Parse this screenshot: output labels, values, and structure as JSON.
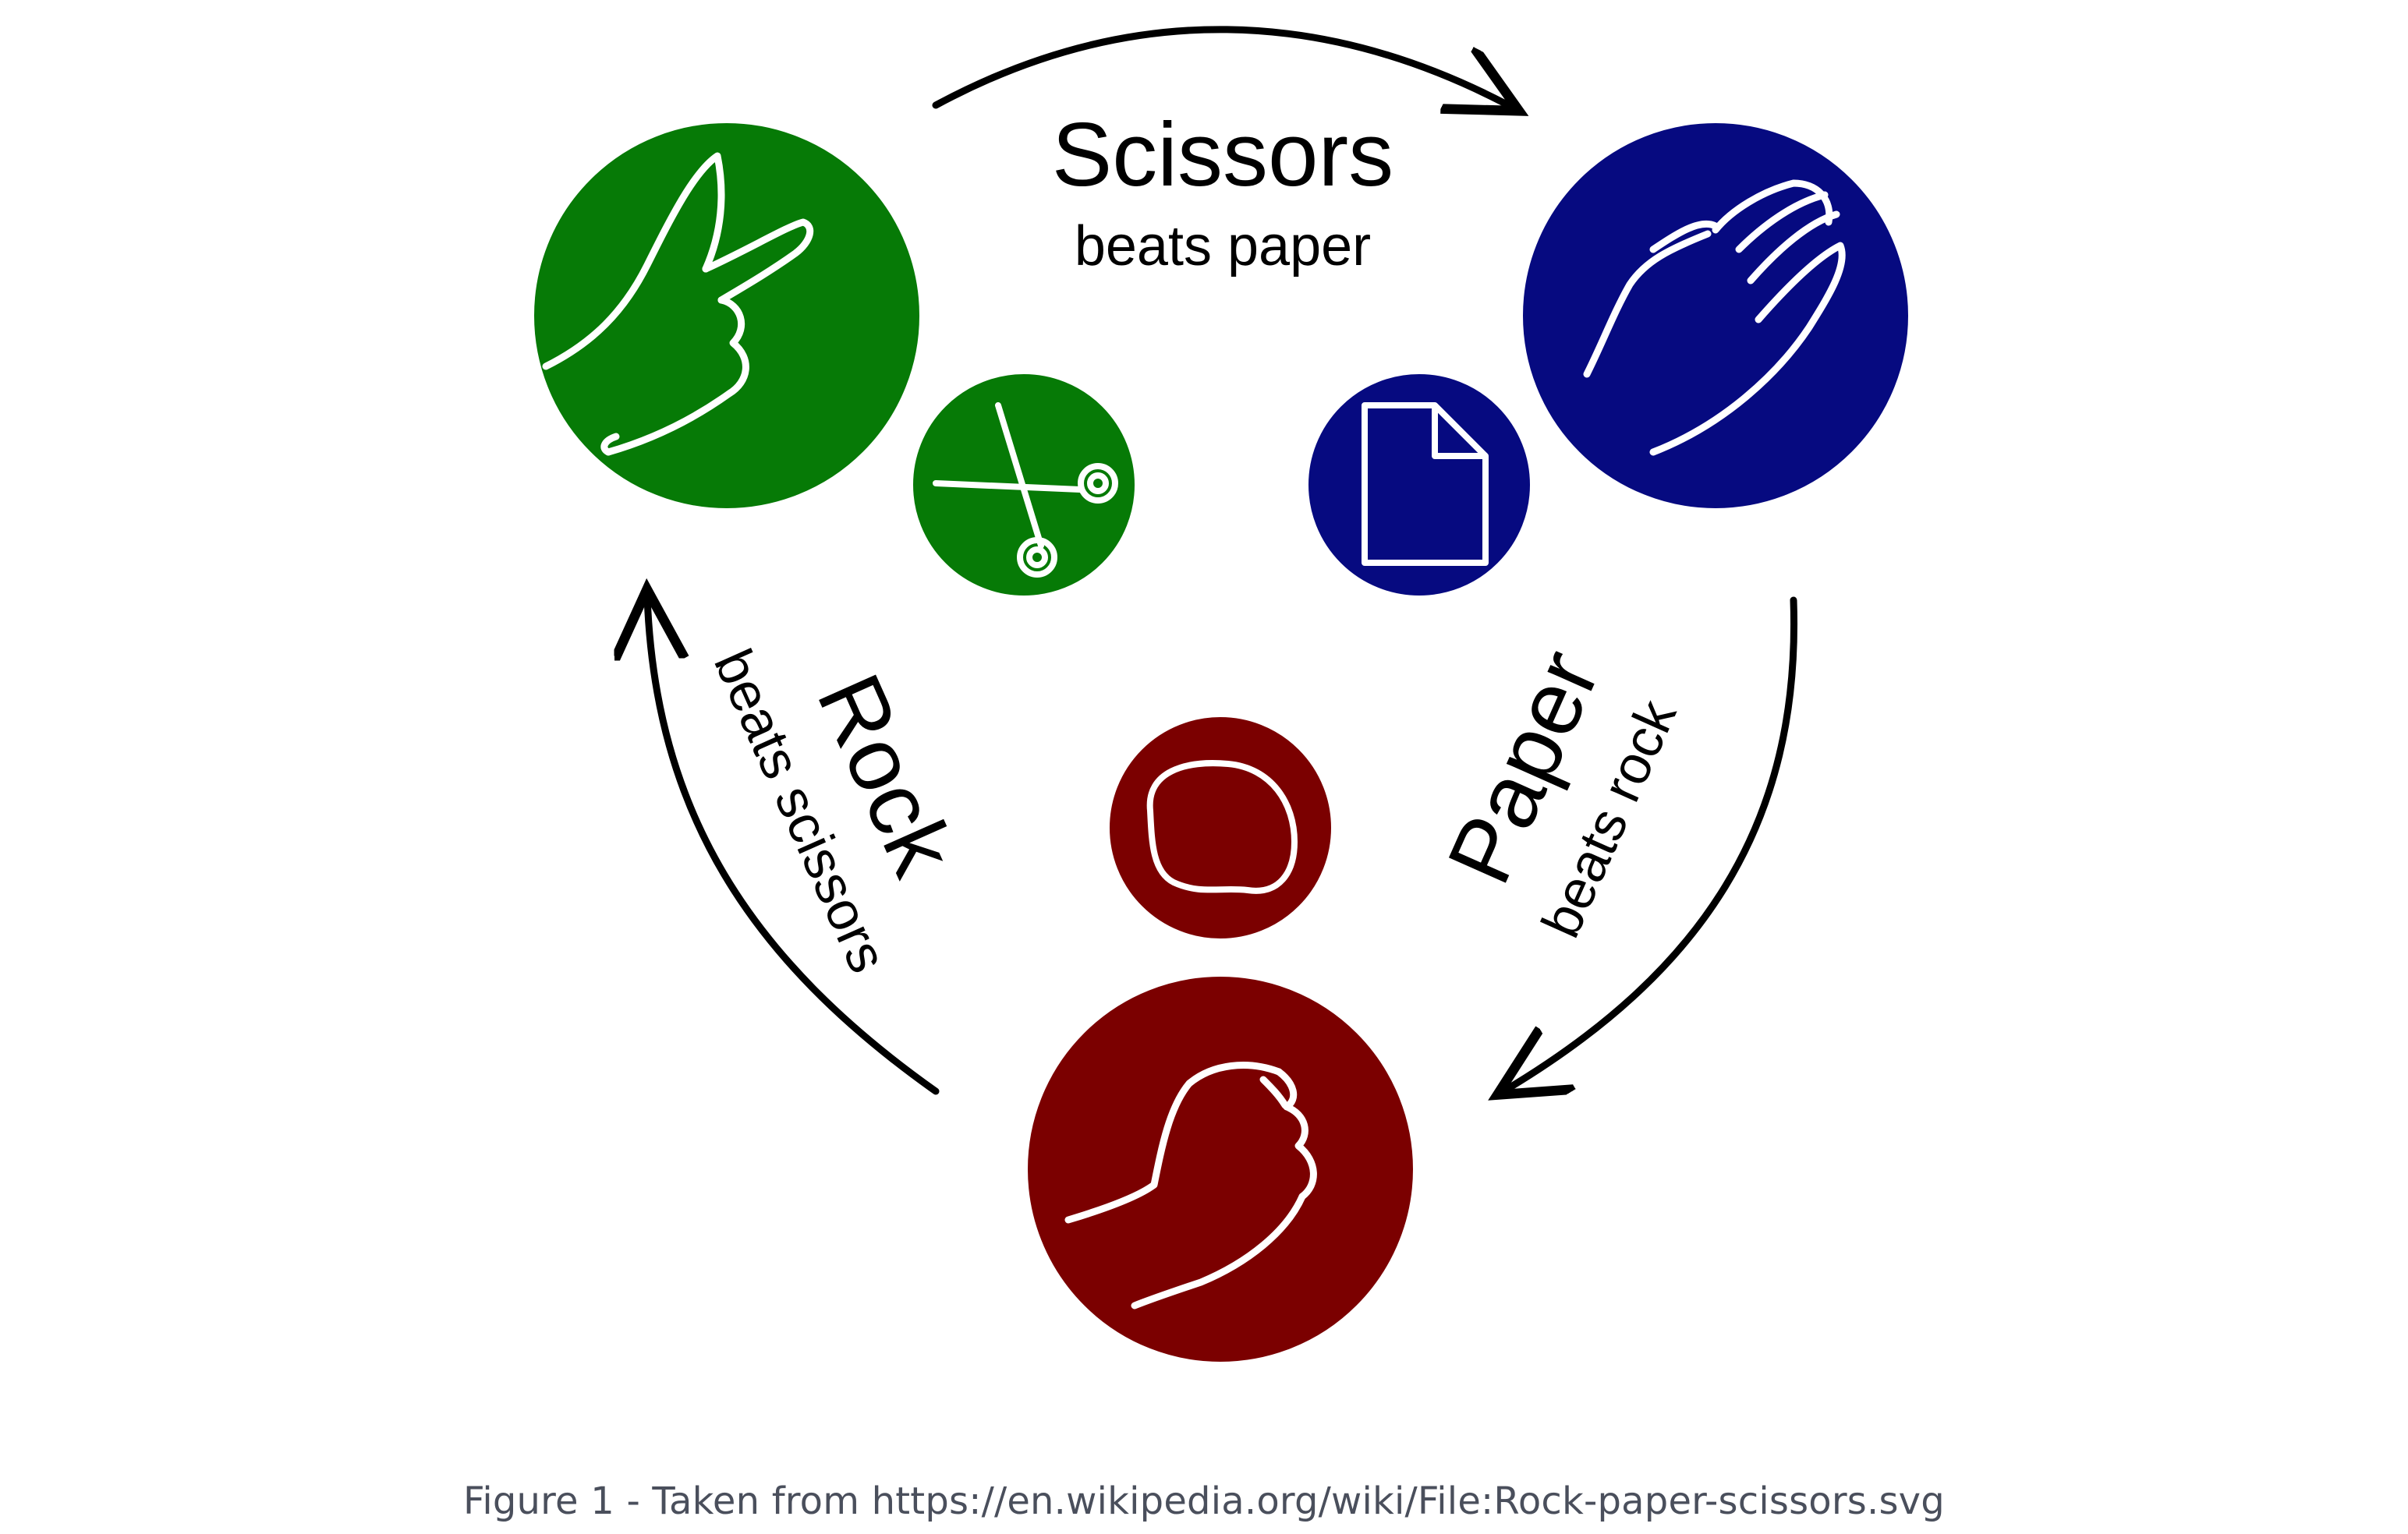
{
  "diagram": {
    "scissors": {
      "title": "Scissors",
      "subtitle": "beats paper",
      "color": "#067a06",
      "hand_icon": "victory-hand-icon",
      "symbol_icon": "scissors-icon"
    },
    "paper": {
      "title": "Paper",
      "subtitle": "beats rock",
      "color": "#060a80",
      "hand_icon": "open-hand-icon",
      "symbol_icon": "document-icon"
    },
    "rock": {
      "title": "Rock",
      "subtitle": "beats scissors",
      "color": "#7b0000",
      "hand_icon": "fist-icon",
      "symbol_icon": "stone-icon"
    },
    "arrow_color": "#000000",
    "icon_stroke_color": "#ffffff"
  },
  "caption": "Figure 1 - Taken from https://en.wikipedia.org/wiki/File:Rock-paper-scissors.svg"
}
